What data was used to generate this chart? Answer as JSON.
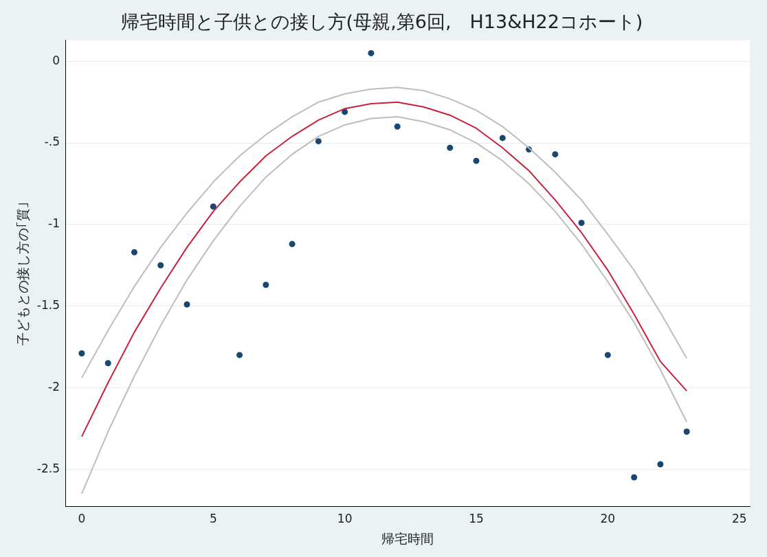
{
  "chart_data": {
    "type": "scatter",
    "title": "帰宅時間と子供との接し方(母親,第6回,　H13&H22コホート)",
    "xlabel": "帰宅時間",
    "ylabel": "子どもとの接し方の｢質｣",
    "xlim": [
      -0.6,
      25.4
    ],
    "xticks": [
      0,
      5,
      10,
      15,
      20,
      25
    ],
    "ylim": [
      -2.73,
      0.13
    ],
    "yticks": [
      {
        "value": 0,
        "label": "0"
      },
      {
        "value": -0.5,
        "label": "-.5"
      },
      {
        "value": -1,
        "label": "-1"
      },
      {
        "value": -1.5,
        "label": "-1.5"
      },
      {
        "value": -2,
        "label": "-2"
      },
      {
        "value": -2.5,
        "label": "-2.5"
      }
    ],
    "grid": "y",
    "legend": false,
    "marker": "circle",
    "series": [
      {
        "type": "line",
        "color": "#bdbdbd",
        "marker": "none",
        "x": [
          0,
          1,
          2,
          3,
          4,
          5,
          6,
          7,
          8,
          9,
          10,
          11,
          12,
          13,
          14,
          15,
          16,
          17,
          18,
          19,
          20,
          21,
          22,
          23
        ],
        "values": [
          -1.94,
          -1.65,
          -1.38,
          -1.14,
          -0.93,
          -0.74,
          -0.58,
          -0.45,
          -0.34,
          -0.25,
          -0.2,
          -0.17,
          -0.16,
          -0.18,
          -0.23,
          -0.3,
          -0.4,
          -0.53,
          -0.68,
          -0.85,
          -1.06,
          -1.28,
          -1.54,
          -1.82
        ]
      },
      {
        "type": "line",
        "color": "#bdbdbd",
        "marker": "none",
        "x": [
          0,
          1,
          2,
          3,
          4,
          5,
          6,
          7,
          8,
          9,
          10,
          11,
          12,
          13,
          14,
          15,
          16,
          17,
          18,
          19,
          20,
          21,
          22,
          23
        ],
        "values": [
          -2.65,
          -2.27,
          -1.93,
          -1.62,
          -1.34,
          -1.1,
          -0.89,
          -0.71,
          -0.57,
          -0.46,
          -0.39,
          -0.35,
          -0.34,
          -0.37,
          -0.42,
          -0.5,
          -0.61,
          -0.75,
          -0.92,
          -1.12,
          -1.35,
          -1.6,
          -1.89,
          -2.21
        ]
      },
      {
        "type": "line",
        "color": "#c8203c",
        "marker": "none",
        "x": [
          0,
          1,
          2,
          3,
          4,
          5,
          6,
          7,
          8,
          9,
          10,
          11,
          12,
          13,
          14,
          15,
          16,
          17,
          18,
          19,
          20,
          21,
          22,
          23
        ],
        "values": [
          -2.3,
          -1.97,
          -1.66,
          -1.39,
          -1.14,
          -0.92,
          -0.74,
          -0.58,
          -0.46,
          -0.36,
          -0.29,
          -0.26,
          -0.25,
          -0.28,
          -0.33,
          -0.41,
          -0.53,
          -0.67,
          -0.85,
          -1.05,
          -1.28,
          -1.55,
          -1.84,
          -2.02
        ]
      },
      {
        "color": "#1a476f",
        "x": [
          0,
          1,
          2,
          3,
          4,
          5,
          6,
          7,
          8,
          9,
          10,
          11,
          12,
          14,
          15,
          16,
          17,
          18,
          19,
          20,
          21,
          22,
          23
        ],
        "values": [
          -1.79,
          -1.85,
          -1.17,
          -1.25,
          -1.49,
          -0.89,
          -1.8,
          -1.37,
          -1.12,
          -0.49,
          -0.31,
          0.05,
          -0.4,
          -0.53,
          -0.61,
          -0.47,
          -0.54,
          -0.57,
          -0.99,
          -1.8,
          -2.55,
          -2.47,
          -2.27
        ]
      }
    ]
  }
}
